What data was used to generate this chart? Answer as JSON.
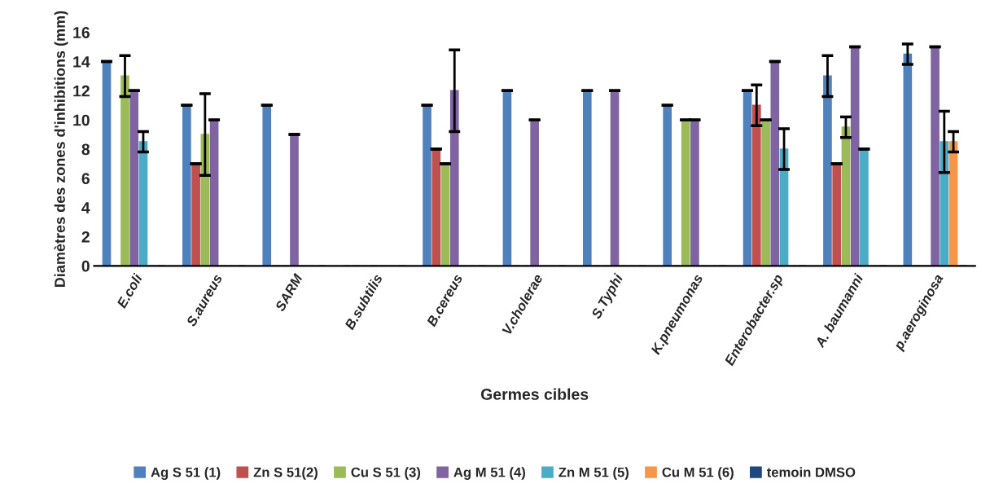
{
  "chart_data": {
    "type": "bar",
    "xlabel": "Germes cibles",
    "ylabel": "Diamètres des zones d'inhibitions (mm)",
    "categories": [
      "E.coli",
      "S.aureus",
      "SARM",
      "B.subtilis",
      "B.cereus",
      "V.cholerae",
      "S.Typhi",
      "K.pneumonas",
      "Enterobacter.sp",
      "A. baumanni",
      "p.aeroginosa"
    ],
    "series": [
      {
        "name": "Ag S 51 (1)",
        "color": "#4f81bd",
        "values": [
          14,
          11,
          11,
          0,
          11,
          12,
          12,
          11,
          12,
          13,
          14.5
        ],
        "errors": [
          0,
          0,
          0,
          null,
          0,
          0,
          0,
          0,
          0,
          1.4,
          0.7
        ]
      },
      {
        "name": "Zn S 51(2)",
        "color": "#c0504d",
        "values": [
          0,
          7,
          0,
          0,
          8,
          0,
          0,
          0,
          11,
          7,
          0
        ],
        "errors": [
          null,
          0,
          null,
          null,
          0,
          null,
          null,
          null,
          1.4,
          0,
          null
        ]
      },
      {
        "name": "Cu S 51 (3)",
        "color": "#9bbb59",
        "values": [
          13,
          9,
          0,
          0,
          7,
          0,
          0,
          10,
          10,
          9.5,
          0
        ],
        "errors": [
          1.4,
          2.8,
          null,
          null,
          0,
          null,
          null,
          0,
          0,
          0.7,
          null
        ]
      },
      {
        "name": "Ag M 51 (4)",
        "color": "#8064a2",
        "values": [
          12,
          10,
          9,
          0,
          12,
          10,
          12,
          10,
          14,
          15,
          15
        ],
        "errors": [
          0,
          0,
          0,
          null,
          2.8,
          0,
          0,
          0,
          0,
          0,
          0
        ]
      },
      {
        "name": "Zn M 51 (5)",
        "color": "#4bacc6",
        "values": [
          8.5,
          0,
          0,
          0,
          0,
          0,
          0,
          0,
          8,
          8,
          8.5
        ],
        "errors": [
          0.7,
          null,
          null,
          null,
          null,
          null,
          null,
          null,
          1.4,
          0,
          2.1
        ]
      },
      {
        "name": "Cu M 51 (6)",
        "color": "#f79646",
        "values": [
          0,
          0,
          0,
          0,
          0,
          0,
          0,
          0,
          0,
          0,
          8.5
        ],
        "errors": [
          null,
          null,
          null,
          null,
          null,
          null,
          null,
          null,
          null,
          null,
          0.7
        ]
      },
      {
        "name": "temoin DMSO",
        "color": "#1f497d",
        "values": [
          0,
          0,
          0,
          0,
          0,
          0,
          0,
          0,
          0,
          0,
          0
        ]
      }
    ],
    "ylim": [
      0,
      16
    ],
    "yticks": [
      0,
      2,
      4,
      6,
      8,
      10,
      12,
      14,
      16
    ],
    "grid": false,
    "legend": "bottom"
  }
}
